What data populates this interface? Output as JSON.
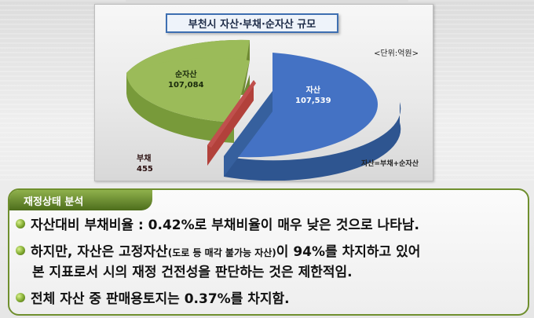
{
  "chart_data": {
    "type": "pie",
    "title": "부천시 자산·부채·순자산 규모",
    "unit_label": "<단위:억원>",
    "slices": [
      {
        "label": "자산",
        "value": "107,539",
        "color": "#4472c4"
      },
      {
        "label": "순자산",
        "value": "107,084",
        "color": "#9bbb59"
      },
      {
        "label": "부채",
        "value": "455",
        "color": "#c0504d"
      }
    ],
    "annotation": "자산=부채+순자산"
  },
  "analysis": {
    "heading": "재정상태 분석",
    "bullets": [
      {
        "text": "자산대비 부채비율 : 0.42%로 부채비율이 매우 낮은 것으로 나타남."
      },
      {
        "pre": "하지만, 자산은 고정자산",
        "small": "(도로 등 매각 불가능 자산)",
        "post": "이 94%를 차지하고 있어",
        "cont": "본 지표로서 시의 재정 건전성을 판단하는 것은 제한적임."
      },
      {
        "text": "전체 자산 중 판매용토지는 0.37%를 차지함."
      }
    ]
  }
}
